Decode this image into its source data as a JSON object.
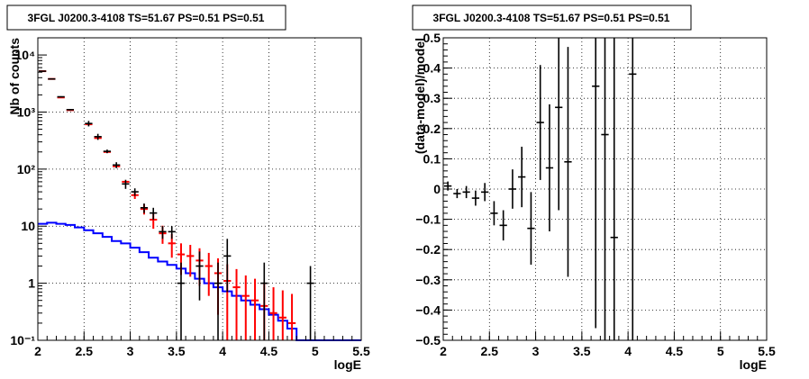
{
  "chart_data": [
    {
      "type": "step-histogram",
      "title": "3FGL J0200.3-4108 TS=51.67 PS=0.51 PS=0.51",
      "xlabel": "logE",
      "ylabel": "Nb of counts",
      "xlim": [
        2,
        5.5
      ],
      "ylim": [
        0.1,
        20000
      ],
      "yscale": "log",
      "grid": true,
      "x_ticks": [
        2,
        2.5,
        3,
        3.5,
        4,
        4.5,
        5,
        5.5
      ],
      "x_tick_labels": [
        "2",
        "2.5",
        "3",
        "3.5",
        "4",
        "4.5",
        "5",
        "5.5"
      ],
      "y_ticks": [
        0.1,
        1,
        10,
        100,
        1000,
        10000
      ],
      "y_tick_labels": [
        "10⁻¹",
        "1",
        "10",
        "10²",
        "10³",
        "10⁴"
      ],
      "bin_width": 0.1,
      "colors": {
        "data": "#000000",
        "model": "#ff0000",
        "component": "#0000ff"
      },
      "series": [
        {
          "role": "data",
          "points": [
            {
              "x": 2.05,
              "y": 5200,
              "yerr": [
                72,
                72
              ]
            },
            {
              "x": 2.15,
              "y": 3800,
              "yerr": [
                62,
                62
              ]
            },
            {
              "x": 2.25,
              "y": 1850,
              "yerr": [
                43,
                43
              ]
            },
            {
              "x": 2.35,
              "y": 1100,
              "yerr": [
                33,
                33
              ]
            },
            {
              "x": 2.55,
              "y": 630,
              "yerr": [
                70,
                70
              ]
            },
            {
              "x": 2.65,
              "y": 370,
              "yerr": [
                45,
                45
              ]
            },
            {
              "x": 2.75,
              "y": 205,
              "yerr": [
                15,
                15
              ]
            },
            {
              "x": 2.85,
              "y": 118,
              "yerr": [
                14,
                14
              ]
            },
            {
              "x": 2.95,
              "y": 55,
              "yerr": [
                10,
                10
              ]
            },
            {
              "x": 3.05,
              "y": 40,
              "yerr": [
                6,
                6
              ]
            },
            {
              "x": 3.15,
              "y": 21,
              "yerr": [
                4,
                4
              ]
            },
            {
              "x": 3.25,
              "y": 17,
              "yerr": [
                4,
                4
              ]
            },
            {
              "x": 3.35,
              "y": 8,
              "yerr": [
                2,
                2
              ]
            },
            {
              "x": 3.45,
              "y": 8,
              "yerr": [
                2,
                2
              ]
            },
            {
              "x": 3.55,
              "y": 1,
              "yerr": [
                0.9,
                1.3
              ]
            },
            {
              "x": 3.75,
              "y": 2,
              "yerr": [
                1.5,
                1.6
              ]
            },
            {
              "x": 3.95,
              "y": 1,
              "yerr": [
                0.9,
                1.3
              ]
            },
            {
              "x": 4.05,
              "y": 3,
              "yerr": [
                2.3,
                3
              ]
            },
            {
              "x": 4.45,
              "y": 1,
              "yerr": [
                0.9,
                1.3
              ]
            },
            {
              "x": 4.95,
              "y": 1,
              "yerr": [
                0.9,
                1
              ]
            }
          ]
        },
        {
          "role": "model",
          "points": [
            {
              "x": 2.05,
              "y": 5200,
              "yerr": [
                0,
                0
              ]
            },
            {
              "x": 2.15,
              "y": 3800,
              "yerr": [
                0,
                0
              ]
            },
            {
              "x": 2.25,
              "y": 1800,
              "yerr": [
                0,
                0
              ]
            },
            {
              "x": 2.35,
              "y": 1080,
              "yerr": [
                0,
                0
              ]
            },
            {
              "x": 2.55,
              "y": 610,
              "yerr": [
                0,
                0
              ]
            },
            {
              "x": 2.65,
              "y": 350,
              "yerr": [
                0,
                0
              ]
            },
            {
              "x": 2.75,
              "y": 200,
              "yerr": [
                0,
                0
              ]
            },
            {
              "x": 2.85,
              "y": 112,
              "yerr": [
                0,
                0
              ]
            },
            {
              "x": 2.95,
              "y": 60,
              "yerr": [
                0,
                0
              ]
            },
            {
              "x": 3.05,
              "y": 35,
              "yerr": [
                5,
                5
              ]
            },
            {
              "x": 3.15,
              "y": 20,
              "yerr": [
                4,
                4
              ]
            },
            {
              "x": 3.25,
              "y": 13,
              "yerr": [
                4,
                4
              ]
            },
            {
              "x": 3.35,
              "y": 7.5,
              "yerr": [
                2.6,
                2.7
              ]
            },
            {
              "x": 3.45,
              "y": 5,
              "yerr": [
                2.2,
                2.3
              ]
            },
            {
              "x": 3.55,
              "y": 3.2,
              "yerr": [
                1.8,
                1.8
              ]
            },
            {
              "x": 3.65,
              "y": 3,
              "yerr": [
                1.7,
                1.7
              ]
            },
            {
              "x": 3.75,
              "y": 2.5,
              "yerr": [
                1.6,
                1.6
              ]
            },
            {
              "x": 3.85,
              "y": 2,
              "yerr": [
                1.4,
                1.4
              ]
            },
            {
              "x": 3.95,
              "y": 1.5,
              "yerr": [
                1.22,
                1.23
              ]
            },
            {
              "x": 4.05,
              "y": 1.1,
              "yerr": [
                1.05,
                1.05
              ]
            },
            {
              "x": 4.15,
              "y": 0.85,
              "yerr": [
                0.84,
                0.92
              ]
            },
            {
              "x": 4.25,
              "y": 0.6,
              "yerr": [
                0.5,
                0.77
              ]
            },
            {
              "x": 4.35,
              "y": 0.5,
              "yerr": [
                0.4,
                0.7
              ]
            },
            {
              "x": 4.45,
              "y": 0.4,
              "yerr": [
                0.3,
                0.63
              ]
            },
            {
              "x": 4.55,
              "y": 0.3,
              "yerr": [
                0.2,
                0.55
              ]
            },
            {
              "x": 4.65,
              "y": 0.25,
              "yerr": [
                0.15,
                0.5
              ]
            },
            {
              "x": 4.75,
              "y": 0.2,
              "yerr": [
                0.1,
                0.45
              ]
            }
          ]
        },
        {
          "role": "component",
          "bins": [
            {
              "x0": 2.0,
              "x1": 2.1,
              "y": 11
            },
            {
              "x0": 2.1,
              "x1": 2.2,
              "y": 11.5
            },
            {
              "x0": 2.2,
              "x1": 2.3,
              "y": 11
            },
            {
              "x0": 2.3,
              "x1": 2.4,
              "y": 10.5
            },
            {
              "x0": 2.4,
              "x1": 2.5,
              "y": 9.5
            },
            {
              "x0": 2.5,
              "x1": 2.6,
              "y": 8.5
            },
            {
              "x0": 2.6,
              "x1": 2.7,
              "y": 7.5
            },
            {
              "x0": 2.7,
              "x1": 2.8,
              "y": 6.5
            },
            {
              "x0": 2.8,
              "x1": 2.9,
              "y": 5.5
            },
            {
              "x0": 2.9,
              "x1": 3.0,
              "y": 5
            },
            {
              "x0": 3.0,
              "x1": 3.1,
              "y": 4.2
            },
            {
              "x0": 3.1,
              "x1": 3.2,
              "y": 3.5
            },
            {
              "x0": 3.2,
              "x1": 3.3,
              "y": 2.8
            },
            {
              "x0": 3.3,
              "x1": 3.4,
              "y": 2.4
            },
            {
              "x0": 3.4,
              "x1": 3.5,
              "y": 2.1
            },
            {
              "x0": 3.5,
              "x1": 3.6,
              "y": 1.8
            },
            {
              "x0": 3.6,
              "x1": 3.7,
              "y": 1.5
            },
            {
              "x0": 3.7,
              "x1": 3.8,
              "y": 1.2
            },
            {
              "x0": 3.8,
              "x1": 3.9,
              "y": 1.0
            },
            {
              "x0": 3.9,
              "x1": 4.0,
              "y": 0.85
            },
            {
              "x0": 4.0,
              "x1": 4.1,
              "y": 0.72
            },
            {
              "x0": 4.1,
              "x1": 4.2,
              "y": 0.6
            },
            {
              "x0": 4.2,
              "x1": 4.3,
              "y": 0.5
            },
            {
              "x0": 4.3,
              "x1": 4.4,
              "y": 0.42
            },
            {
              "x0": 4.4,
              "x1": 4.5,
              "y": 0.35
            },
            {
              "x0": 4.5,
              "x1": 4.6,
              "y": 0.28
            },
            {
              "x0": 4.6,
              "x1": 4.7,
              "y": 0.22
            },
            {
              "x0": 4.7,
              "x1": 4.8,
              "y": 0.16
            },
            {
              "x0": 4.8,
              "x1": 5.5,
              "y": 0.1
            }
          ]
        }
      ]
    },
    {
      "type": "scatter-errorbars",
      "title": "3FGL J0200.3-4108 TS=51.67 PS=0.51 PS=0.51",
      "xlabel": "logE",
      "ylabel": "(data-model)/model",
      "xlim": [
        2,
        5.5
      ],
      "ylim": [
        -0.5,
        0.5
      ],
      "yscale": "linear",
      "grid": true,
      "x_ticks": [
        2,
        2.5,
        3,
        3.5,
        4,
        4.5,
        5,
        5.5
      ],
      "x_tick_labels": [
        "2",
        "2.5",
        "3",
        "3.5",
        "4",
        "4.5",
        "5",
        "5.5"
      ],
      "y_ticks": [
        -0.5,
        -0.4,
        -0.3,
        -0.2,
        -0.1,
        0,
        0.1,
        0.2,
        0.3,
        0.4,
        0.5
      ],
      "y_tick_labels": [
        "−0.5",
        "−0.4",
        "−0.3",
        "−0.2",
        "−0.1",
        "0",
        "0.1",
        "0.2",
        "0.3",
        "0.4",
        "0.5"
      ],
      "bin_width": 0.1,
      "colors": {
        "data": "#000000"
      },
      "series": [
        {
          "role": "residual",
          "points": [
            {
              "x": 2.05,
              "y": 0.01,
              "yerr": [
                0.015,
                0.015
              ]
            },
            {
              "x": 2.15,
              "y": -0.015,
              "yerr": [
                0.015,
                0.015
              ]
            },
            {
              "x": 2.25,
              "y": -0.01,
              "yerr": [
                0.02,
                0.02
              ]
            },
            {
              "x": 2.35,
              "y": -0.03,
              "yerr": [
                0.025,
                0.025
              ]
            },
            {
              "x": 2.45,
              "y": -0.01,
              "yerr": [
                0.03,
                0.03
              ]
            },
            {
              "x": 2.55,
              "y": -0.08,
              "yerr": [
                0.04,
                0.04
              ]
            },
            {
              "x": 2.65,
              "y": -0.12,
              "yerr": [
                0.05,
                0.05
              ]
            },
            {
              "x": 2.75,
              "y": 0.0,
              "yerr": [
                0.065,
                0.065
              ]
            },
            {
              "x": 2.85,
              "y": 0.04,
              "yerr": [
                0.1,
                0.1
              ]
            },
            {
              "x": 2.95,
              "y": -0.13,
              "yerr": [
                0.12,
                0.12
              ]
            },
            {
              "x": 3.05,
              "y": 0.22,
              "yerr": [
                0.19,
                0.19
              ]
            },
            {
              "x": 3.15,
              "y": 0.07,
              "yerr": [
                0.21,
                0.21
              ]
            },
            {
              "x": 3.25,
              "y": 0.27,
              "yerr": [
                0.34,
                0.34
              ]
            },
            {
              "x": 3.35,
              "y": 0.09,
              "yerr": [
                0.38,
                0.38
              ]
            },
            {
              "x": 3.65,
              "y": 0.34,
              "yerr": [
                0.8,
                0.8
              ]
            },
            {
              "x": 3.75,
              "y": 0.18,
              "yerr": [
                0.8,
                0.8
              ]
            },
            {
              "x": 3.85,
              "y": -0.16,
              "yerr": [
                0.8,
                0.8
              ]
            },
            {
              "x": 4.05,
              "y": 0.38,
              "yerr": [
                1.0,
                1.0
              ]
            }
          ]
        }
      ]
    }
  ]
}
